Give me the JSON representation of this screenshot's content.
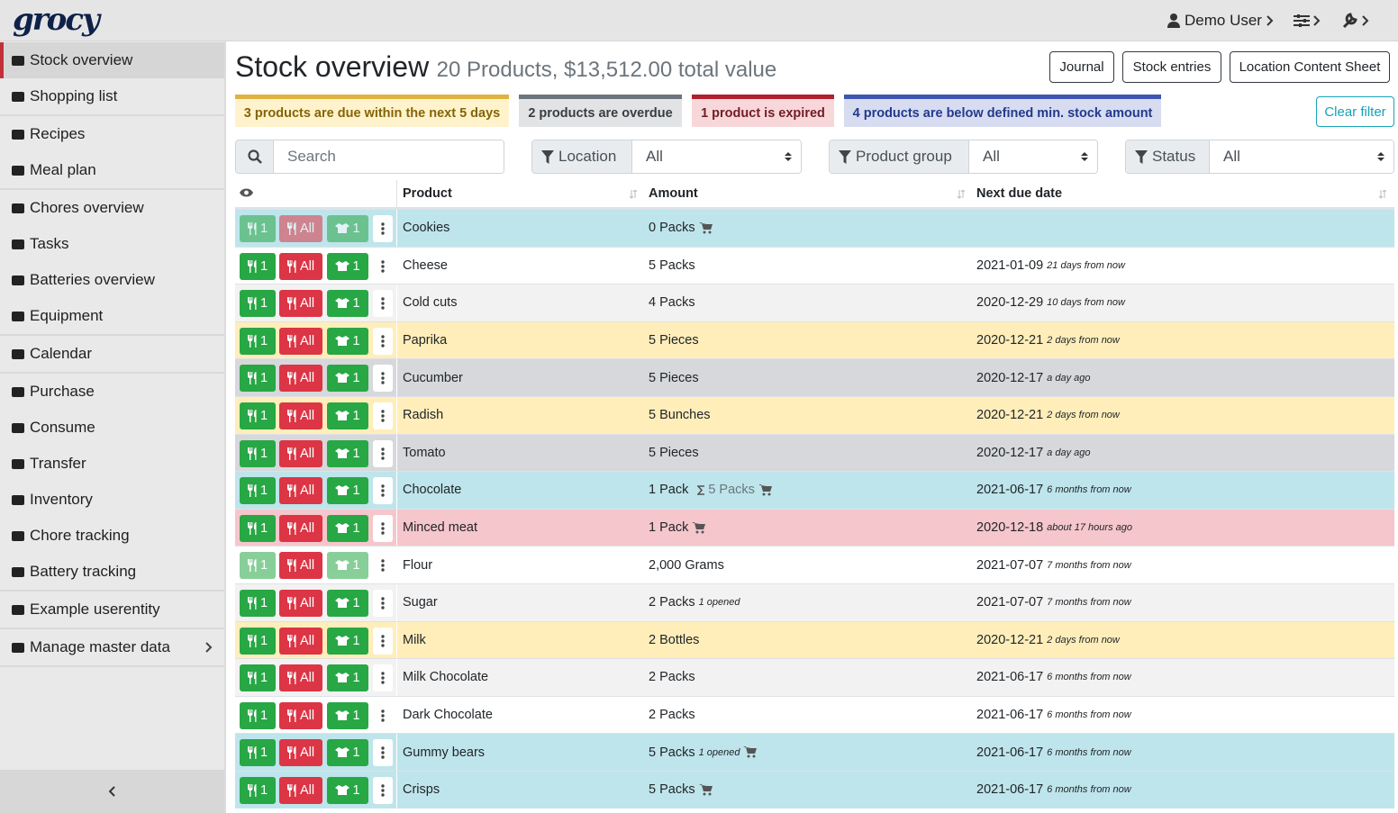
{
  "header": {
    "logo": "grocy",
    "user": "Demo User"
  },
  "sidebar": {
    "active": [
      0,
      0
    ],
    "collapse_control": true,
    "groups": [
      [
        {
          "label": "Stock overview"
        },
        {
          "label": "Shopping list"
        }
      ],
      [
        {
          "label": "Recipes"
        },
        {
          "label": "Meal plan"
        }
      ],
      [
        {
          "label": "Chores overview"
        },
        {
          "label": "Tasks"
        },
        {
          "label": "Batteries overview"
        },
        {
          "label": "Equipment"
        }
      ],
      [
        {
          "label": "Calendar"
        }
      ],
      [
        {
          "label": "Purchase"
        },
        {
          "label": "Consume"
        },
        {
          "label": "Transfer"
        },
        {
          "label": "Inventory"
        },
        {
          "label": "Chore tracking"
        },
        {
          "label": "Battery tracking"
        }
      ],
      [
        {
          "label": "Example userentity"
        }
      ],
      [
        {
          "label": "Manage master data",
          "submenu": true
        }
      ]
    ]
  },
  "main": {
    "title": "Stock overview",
    "subtitle": "20 Products, $13,512.00 total value",
    "buttons": [
      "Journal",
      "Stock entries",
      "Location Content Sheet"
    ],
    "alerts": [
      {
        "text": "3 products are due within the next 5 days",
        "kind": "due_soon"
      },
      {
        "text": "2 products are overdue",
        "kind": "overdue"
      },
      {
        "text": "1 product is expired",
        "kind": "expired"
      },
      {
        "text": "4 products are below defined min. stock amount",
        "kind": "below_min"
      }
    ],
    "clear_filter": "Clear filter",
    "search_placeholder": "Search",
    "filters": [
      {
        "label": "Location",
        "value": "All"
      },
      {
        "label": "Product group",
        "value": "All"
      },
      {
        "label": "Status",
        "value": "All"
      }
    ]
  },
  "table": {
    "headers": [
      "Product",
      "Amount",
      "Next due date"
    ],
    "action_labels": {
      "consume": "1",
      "consume_all": "All",
      "open": "1"
    },
    "rows": [
      {
        "product": "Cookies",
        "amount": "0 Packs",
        "cart": true,
        "status": "below_min",
        "faded": [
          "consume",
          "consume_all",
          "open"
        ]
      },
      {
        "product": "Cheese",
        "amount": "5 Packs",
        "due": "2021-01-09",
        "due_relative": "21 days from now"
      },
      {
        "product": "Cold cuts",
        "amount": "4 Packs",
        "due": "2020-12-29",
        "due_relative": "10 days from now"
      },
      {
        "product": "Paprika",
        "amount": "5 Pieces",
        "due": "2020-12-21",
        "due_relative": "2 days from now",
        "status": "due_soon"
      },
      {
        "product": "Cucumber",
        "amount": "5 Pieces",
        "due": "2020-12-17",
        "due_relative": "a day ago",
        "status": "overdue"
      },
      {
        "product": "Radish",
        "amount": "5 Bunches",
        "due": "2020-12-21",
        "due_relative": "2 days from now",
        "status": "due_soon"
      },
      {
        "product": "Tomato",
        "amount": "5 Pieces",
        "due": "2020-12-17",
        "due_relative": "a day ago",
        "status": "overdue"
      },
      {
        "product": "Chocolate",
        "amount": "1 Pack",
        "amount_sum": "5 Packs",
        "cart": true,
        "due": "2021-06-17",
        "due_relative": "6 months from now",
        "status": "below_min"
      },
      {
        "product": "Minced meat",
        "amount": "1 Pack",
        "cart": true,
        "due": "2020-12-18",
        "due_relative": "about 17 hours ago",
        "status": "expired"
      },
      {
        "product": "Flour",
        "amount": "2,000 Grams",
        "due": "2021-07-07",
        "due_relative": "7 months from now",
        "faded": [
          "consume",
          "open"
        ]
      },
      {
        "product": "Sugar",
        "amount": "2 Packs",
        "opened": "1 opened",
        "due": "2021-07-07",
        "due_relative": "7 months from now"
      },
      {
        "product": "Milk",
        "amount": "2 Bottles",
        "due": "2020-12-21",
        "due_relative": "2 days from now",
        "status": "due_soon"
      },
      {
        "product": "Milk Chocolate",
        "amount": "2 Packs",
        "due": "2021-06-17",
        "due_relative": "6 months from now"
      },
      {
        "product": "Dark Chocolate",
        "amount": "2 Packs",
        "due": "2021-06-17",
        "due_relative": "6 months from now"
      },
      {
        "product": "Gummy bears",
        "amount": "5 Packs",
        "opened": "1 opened",
        "cart": true,
        "due": "2021-06-17",
        "due_relative": "6 months from now",
        "status": "below_min"
      },
      {
        "product": "Crisps",
        "amount": "5 Packs",
        "cart": true,
        "due": "2021-06-17",
        "due_relative": "6 months from now",
        "status": "below_min"
      }
    ]
  }
}
